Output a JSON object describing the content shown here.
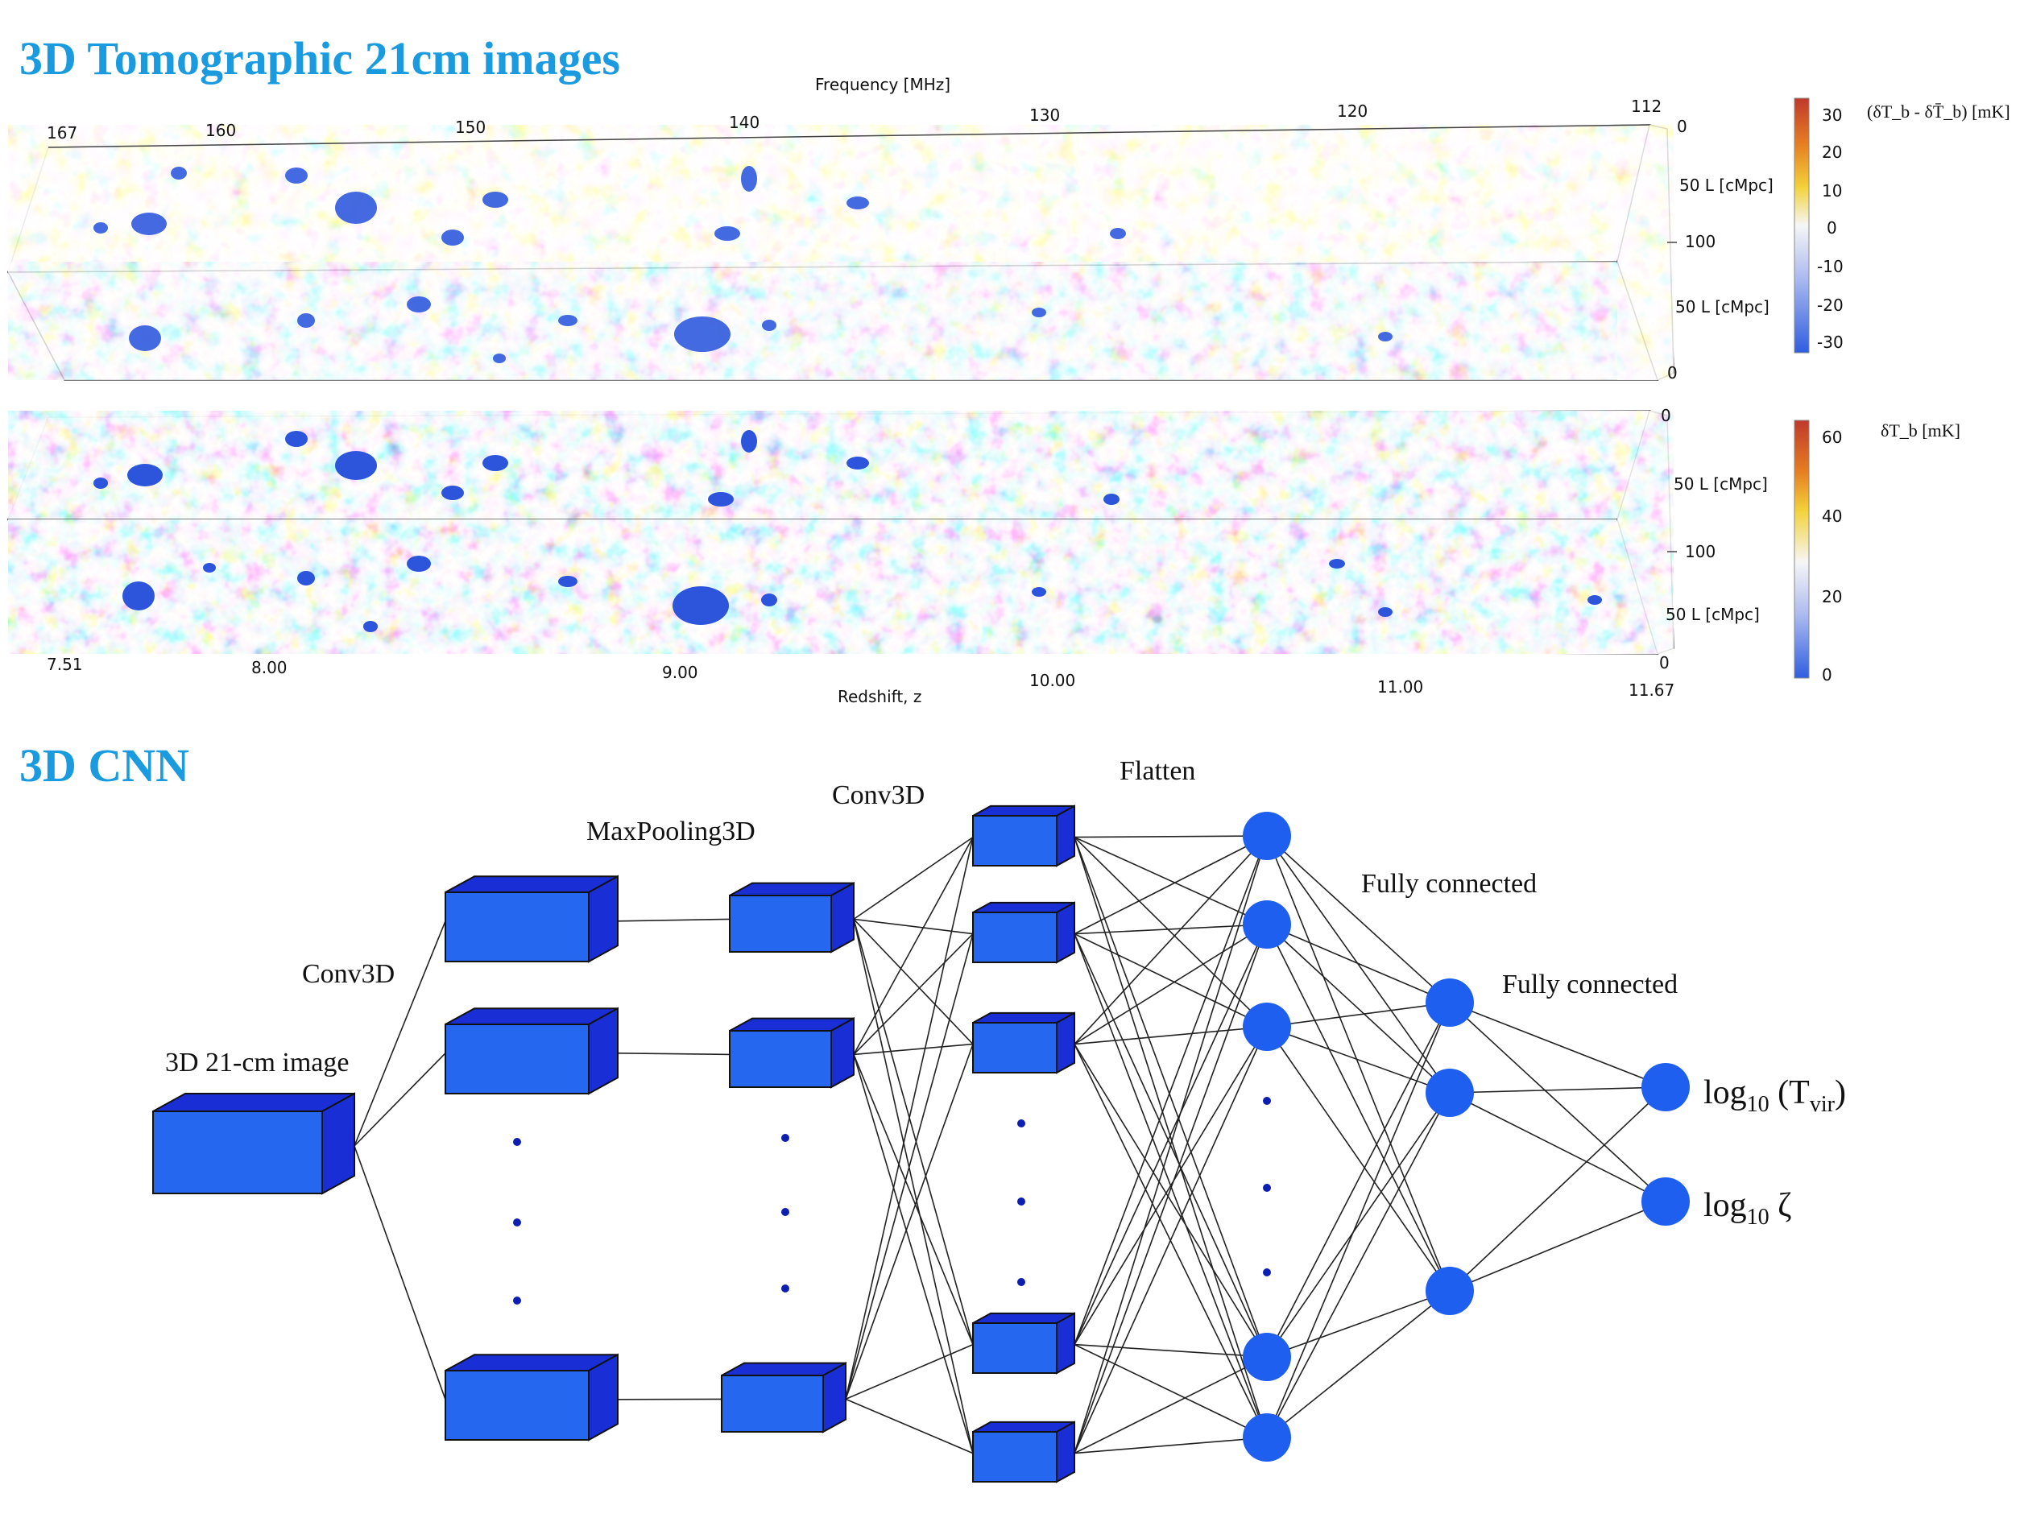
{
  "headings": {
    "top": "3D Tomographic 21cm images",
    "bottom": "3D CNN"
  },
  "colors": {
    "heading": "#1a9be0",
    "volume_blue": "#2f5ee0",
    "volume_yellow": "#f3d23a",
    "block_front": "#2667ef",
    "block_top": "#1a2ed6",
    "node": "#1e5ff0",
    "dot": "#0d1fb0"
  },
  "cube1": {
    "freq_axis_label": "Frequency [MHz]",
    "freq_ticks": [
      "167",
      "160",
      "150",
      "140",
      "130",
      "120",
      "112"
    ],
    "l_labels": [
      "50 L [cMpc]",
      "50 L [cMpc]"
    ],
    "l_ticks": [
      "0",
      "100",
      "0"
    ],
    "colorbar_title": "(δT_b - δT̄_b) [mK]",
    "colorbar_ticks": [
      "30",
      "20",
      "10",
      "0",
      "-10",
      "-20",
      "-30"
    ]
  },
  "cube2": {
    "l_labels": [
      "50 L [cMpc]",
      "50 L [cMpc]"
    ],
    "l_ticks": [
      "0",
      "100",
      "0"
    ],
    "colorbar_title": "δT_b [mK]",
    "colorbar_ticks": [
      "60",
      "40",
      "20",
      "0"
    ],
    "z_axis_label": "Redshift, z",
    "z_ticks": [
      "7.51",
      "8.00",
      "9.00",
      "10.00",
      "11.00",
      "11.67"
    ]
  },
  "cnn": {
    "input_label": "3D 21-cm image",
    "conv1_label": "Conv3D",
    "pool_label": "MaxPooling3D",
    "conv2_label": "Conv3D",
    "flatten_label": "Flatten",
    "fc1_label": "Fully connected",
    "fc2_label": "Fully connected",
    "out1": {
      "base": "log",
      "sub": "10",
      "arg": " (T",
      "argsub": "vir",
      "close": ")"
    },
    "out2": {
      "base": "log",
      "sub": "10",
      "arg": " ζ"
    }
  }
}
